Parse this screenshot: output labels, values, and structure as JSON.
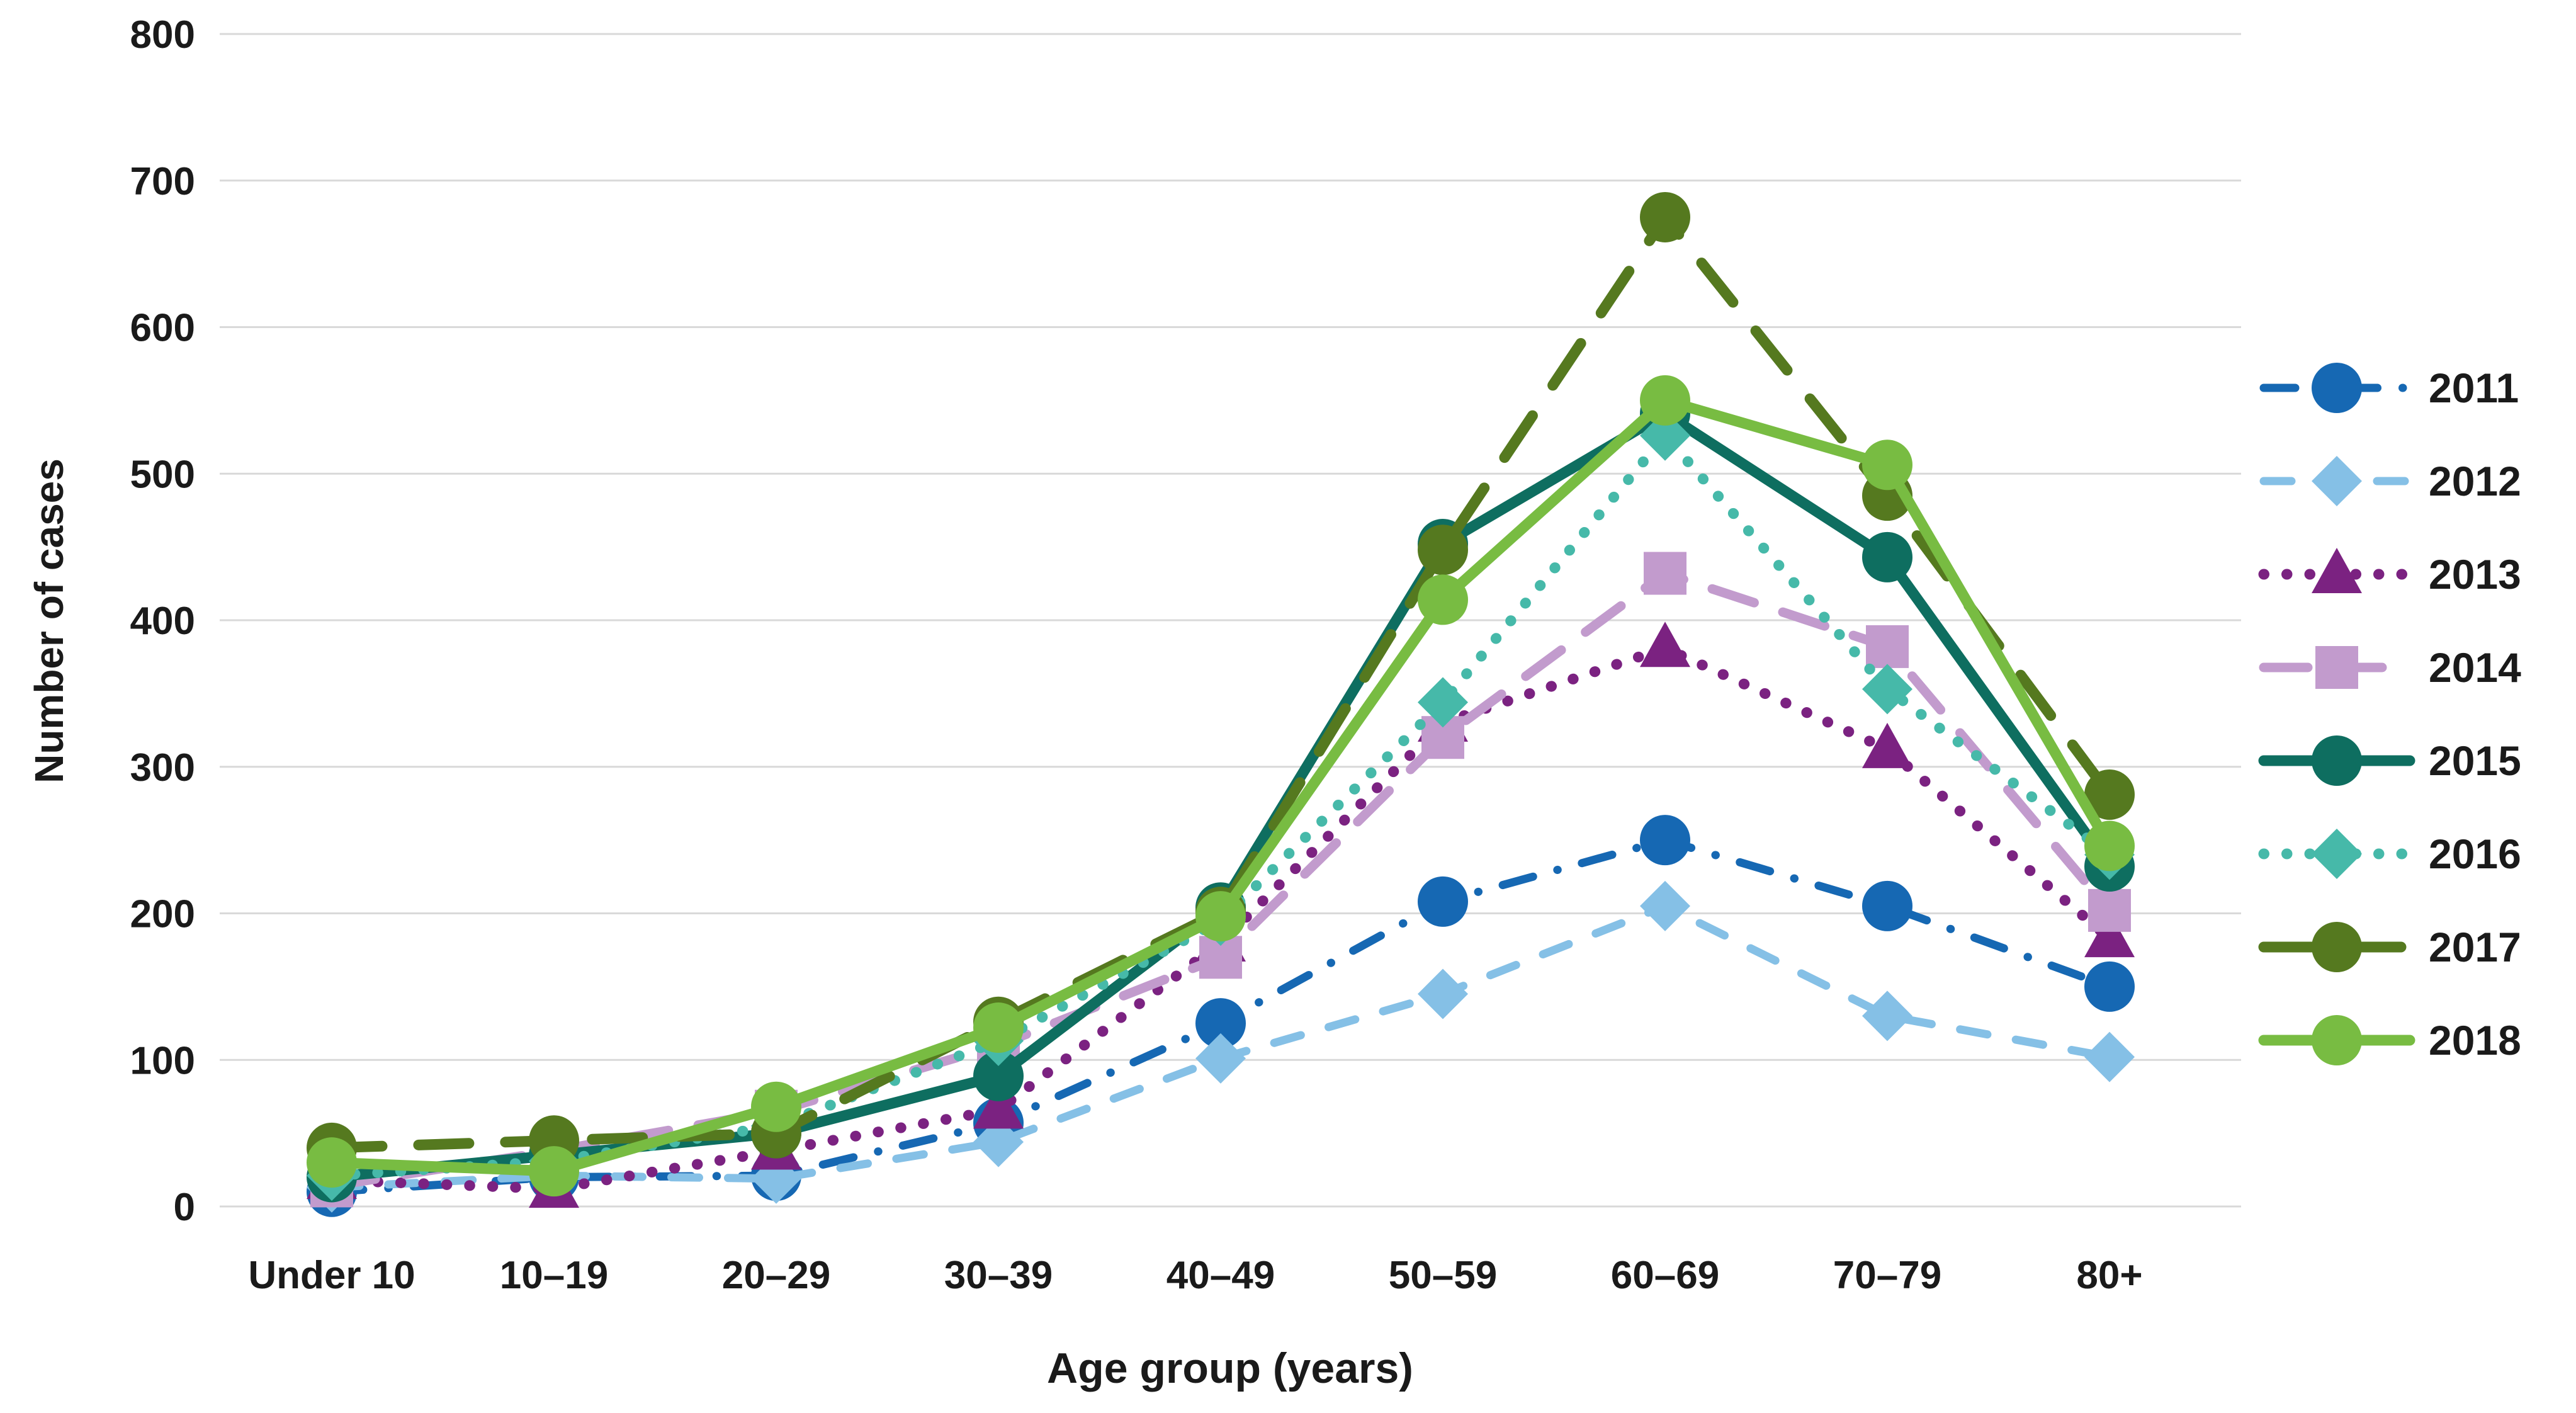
{
  "chart_data": {
    "type": "line",
    "title": "",
    "xlabel": "Age group (years)",
    "ylabel": "Number of cases",
    "ylim": [
      0,
      800
    ],
    "ytick_step": 100,
    "grid": true,
    "legend_position": "right",
    "categories": [
      "Under 10",
      "10–19",
      "20–29",
      "30–39",
      "40–49",
      "50–59",
      "60–69",
      "70–79",
      "80+"
    ],
    "series": [
      {
        "name": "2011",
        "color": "#1668b3",
        "marker": "circle",
        "dash": "dashdot",
        "values": [
          10,
          20,
          21,
          57,
          125,
          208,
          250,
          205,
          150
        ]
      },
      {
        "name": "2012",
        "color": "#85c0e6",
        "marker": "diamond",
        "dash": "dashed",
        "values": [
          13,
          21,
          19,
          44,
          101,
          145,
          205,
          130,
          102
        ]
      },
      {
        "name": "2013",
        "color": "#7b2281",
        "marker": "triangle",
        "dash": "dotted",
        "values": [
          18,
          12,
          38,
          66,
          180,
          330,
          381,
          312,
          183
        ]
      },
      {
        "name": "2014",
        "color": "#c29bcd",
        "marker": "square",
        "dash": "longdash",
        "values": [
          14,
          38,
          65,
          110,
          170,
          320,
          432,
          382,
          202
        ]
      },
      {
        "name": "2015",
        "color": "#0e6e60",
        "marker": "circle",
        "dash": "solid",
        "values": [
          20,
          35,
          50,
          89,
          204,
          452,
          541,
          443,
          232
        ]
      },
      {
        "name": "2016",
        "color": "#46b9a9",
        "marker": "diamond",
        "dash": "dotted",
        "values": [
          21,
          31,
          55,
          113,
          195,
          344,
          526,
          353,
          240
        ]
      },
      {
        "name": "2017",
        "color": "#55791f",
        "marker": "circle",
        "dash": "xlongdash",
        "values": [
          40,
          45,
          50,
          126,
          201,
          448,
          675,
          485,
          281
        ]
      },
      {
        "name": "2018",
        "color": "#78bc42",
        "marker": "circle",
        "dash": "solid",
        "values": [
          30,
          24,
          68,
          122,
          198,
          414,
          550,
          506,
          246
        ]
      }
    ],
    "gridline_color": "#d9d9d9",
    "text_color": "#1a1a1a",
    "background_color": "#ffffff"
  }
}
